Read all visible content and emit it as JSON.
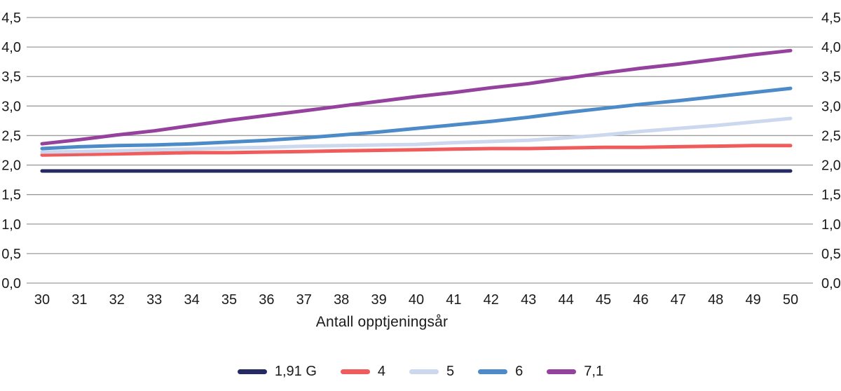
{
  "chart_data": {
    "type": "line",
    "title": "",
    "xlabel": "Antall opptjeningsår",
    "ylabel": "",
    "x": [
      30,
      31,
      32,
      33,
      34,
      35,
      36,
      37,
      38,
      39,
      40,
      41,
      42,
      43,
      44,
      45,
      46,
      47,
      48,
      49,
      50
    ],
    "xtick_labels": [
      "30",
      "31",
      "32",
      "33",
      "34",
      "35",
      "36",
      "37",
      "38",
      "39",
      "40",
      "41",
      "42",
      "43",
      "44",
      "45",
      "46",
      "47",
      "48",
      "49",
      "50"
    ],
    "ytick_values": [
      0.0,
      0.5,
      1.0,
      1.5,
      2.0,
      2.5,
      3.0,
      3.5,
      4.0,
      4.5
    ],
    "ytick_labels": [
      "0,0",
      "0,5",
      "1,0",
      "1,5",
      "2,0",
      "2,5",
      "3,0",
      "3,5",
      "4,0",
      "4,5"
    ],
    "ylim": [
      0.0,
      4.5
    ],
    "grid": "horizontal",
    "legend_position": "bottom",
    "y_axis_sides": "both",
    "series": [
      {
        "name": "1,91 G",
        "color": "#252a62",
        "values": [
          1.9,
          1.9,
          1.9,
          1.9,
          1.9,
          1.9,
          1.9,
          1.9,
          1.9,
          1.9,
          1.9,
          1.9,
          1.9,
          1.9,
          1.9,
          1.9,
          1.9,
          1.9,
          1.9,
          1.9,
          1.9
        ]
      },
      {
        "name": "4",
        "color": "#f05c5c",
        "values": [
          2.17,
          2.18,
          2.19,
          2.2,
          2.21,
          2.21,
          2.22,
          2.23,
          2.24,
          2.25,
          2.26,
          2.27,
          2.28,
          2.28,
          2.29,
          2.3,
          2.3,
          2.31,
          2.32,
          2.33,
          2.33
        ]
      },
      {
        "name": "5",
        "color": "#cbd8ee",
        "values": [
          2.22,
          2.23,
          2.24,
          2.26,
          2.27,
          2.29,
          2.3,
          2.32,
          2.33,
          2.34,
          2.35,
          2.38,
          2.4,
          2.42,
          2.46,
          2.51,
          2.57,
          2.62,
          2.67,
          2.73,
          2.79
        ]
      },
      {
        "name": "6",
        "color": "#4d8ac8",
        "values": [
          2.28,
          2.31,
          2.33,
          2.34,
          2.36,
          2.39,
          2.42,
          2.46,
          2.51,
          2.56,
          2.62,
          2.68,
          2.74,
          2.81,
          2.89,
          2.96,
          3.03,
          3.09,
          3.16,
          3.23,
          3.3
        ]
      },
      {
        "name": "7,1",
        "color": "#95429e",
        "values": [
          2.36,
          2.43,
          2.51,
          2.58,
          2.67,
          2.76,
          2.84,
          2.92,
          3.0,
          3.08,
          3.16,
          3.23,
          3.31,
          3.38,
          3.47,
          3.56,
          3.64,
          3.71,
          3.79,
          3.87,
          3.94
        ]
      }
    ],
    "colors": {
      "grid": "#9c9c9c",
      "text": "#1a1a1a"
    }
  }
}
